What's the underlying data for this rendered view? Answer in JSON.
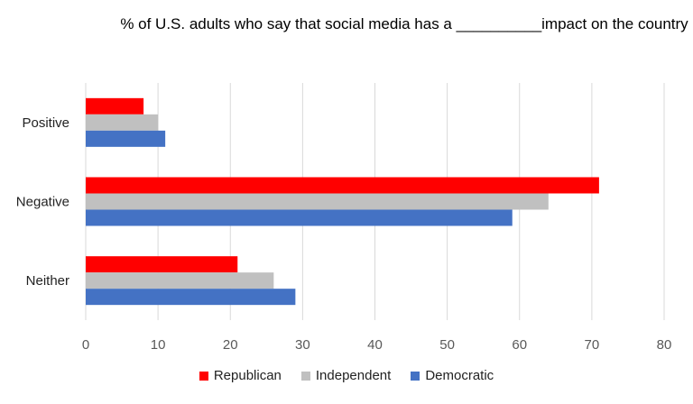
{
  "chart_data": {
    "type": "bar",
    "orientation": "horizontal",
    "title": "% of U.S. adults who say that social media has a __________impact on the country",
    "categories": [
      "Positive",
      "Negative",
      "Neither"
    ],
    "series": [
      {
        "name": "Republican",
        "color": "#ff0000",
        "values": [
          8,
          71,
          21
        ]
      },
      {
        "name": "Independent",
        "color": "#c0c0c0",
        "values": [
          10,
          64,
          26
        ]
      },
      {
        "name": "Democratic",
        "color": "#4472c4",
        "values": [
          11,
          59,
          29
        ]
      }
    ],
    "xlim": [
      0,
      80
    ],
    "xticks": [
      "0",
      "10",
      "20",
      "30",
      "40",
      "50",
      "60",
      "70",
      "80"
    ],
    "grid": true,
    "legend_position": "bottom"
  }
}
